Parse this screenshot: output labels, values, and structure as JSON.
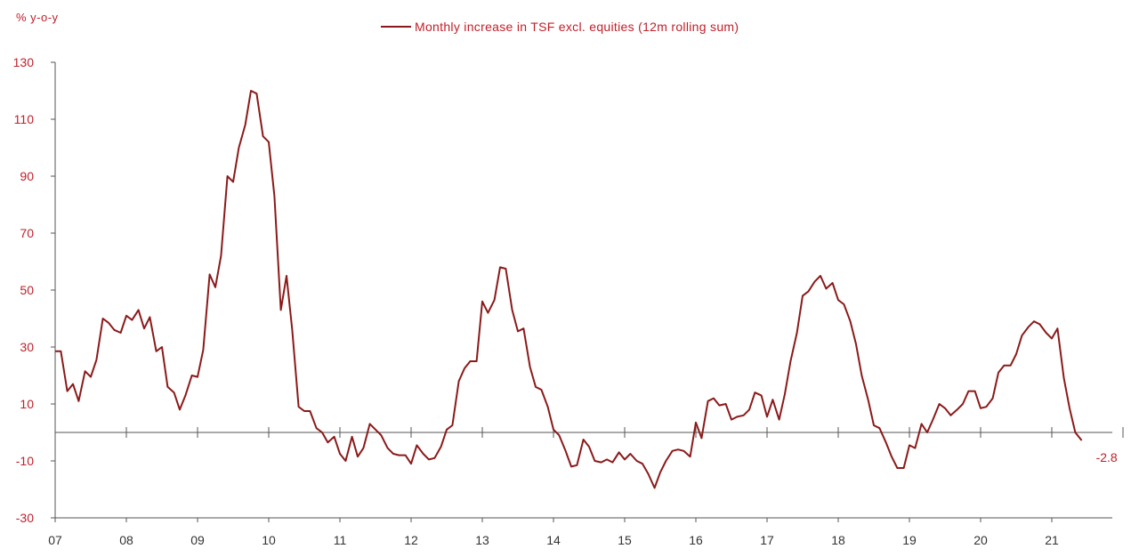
{
  "chart_data": {
    "type": "line",
    "ylabel": "% y-o-y",
    "xlabel": "",
    "ylim": [
      -30,
      130
    ],
    "yticks": [
      -30,
      -10,
      10,
      30,
      50,
      70,
      90,
      110,
      130
    ],
    "xlim": [
      2007,
      2022
    ],
    "xticks": [
      "07",
      "08",
      "09",
      "10",
      "11",
      "12",
      "13",
      "14",
      "15",
      "16",
      "17",
      "18",
      "19",
      "20",
      "21"
    ],
    "legend_position": "top-center",
    "grid": false,
    "end_label": "-2.8",
    "series": [
      {
        "name": "Monthly increase in TSF excl. equities (12m rolling sum)",
        "color": "#8b1a1a",
        "x": [
          2007.0,
          2007.08,
          2007.17,
          2007.25,
          2007.33,
          2007.42,
          2007.5,
          2007.58,
          2007.67,
          2007.75,
          2007.83,
          2007.92,
          2008.0,
          2008.08,
          2008.17,
          2008.25,
          2008.33,
          2008.42,
          2008.5,
          2008.58,
          2008.67,
          2008.75,
          2008.83,
          2008.92,
          2009.0,
          2009.08,
          2009.17,
          2009.25,
          2009.33,
          2009.42,
          2009.5,
          2009.58,
          2009.67,
          2009.75,
          2009.83,
          2009.92,
          2010.0,
          2010.08,
          2010.17,
          2010.25,
          2010.33,
          2010.42,
          2010.5,
          2010.58,
          2010.67,
          2010.75,
          2010.83,
          2010.92,
          2011.0,
          2011.08,
          2011.17,
          2011.25,
          2011.33,
          2011.42,
          2011.5,
          2011.58,
          2011.67,
          2011.75,
          2011.83,
          2011.92,
          2012.0,
          2012.08,
          2012.17,
          2012.25,
          2012.33,
          2012.42,
          2012.5,
          2012.58,
          2012.67,
          2012.75,
          2012.83,
          2012.92,
          2013.0,
          2013.08,
          2013.17,
          2013.25,
          2013.33,
          2013.42,
          2013.5,
          2013.58,
          2013.67,
          2013.75,
          2013.83,
          2013.92,
          2014.0,
          2014.08,
          2014.17,
          2014.25,
          2014.33,
          2014.42,
          2014.5,
          2014.58,
          2014.67,
          2014.75,
          2014.83,
          2014.92,
          2015.0,
          2015.08,
          2015.17,
          2015.25,
          2015.33,
          2015.42,
          2015.5,
          2015.58,
          2015.67,
          2015.75,
          2015.83,
          2015.92,
          2016.0,
          2016.08,
          2016.17,
          2016.25,
          2016.33,
          2016.42,
          2016.5,
          2016.58,
          2016.67,
          2016.75,
          2016.83,
          2016.92,
          2017.0,
          2017.08,
          2017.17,
          2017.25,
          2017.33,
          2017.42,
          2017.5,
          2017.58,
          2017.67,
          2017.75,
          2017.83,
          2017.92,
          2018.0,
          2018.08,
          2018.17,
          2018.25,
          2018.33,
          2018.42,
          2018.5,
          2018.58,
          2018.67,
          2018.75,
          2018.83,
          2018.92,
          2019.0,
          2019.08,
          2019.17,
          2019.25,
          2019.33,
          2019.42,
          2019.5,
          2019.58,
          2019.67,
          2019.75,
          2019.83,
          2019.92,
          2020.0,
          2020.08,
          2020.17,
          2020.25,
          2020.33,
          2020.42,
          2020.5,
          2020.58,
          2020.67,
          2020.75,
          2020.83,
          2020.92,
          2021.0,
          2021.08,
          2021.17,
          2021.25,
          2021.33,
          2021.42
        ],
        "y": [
          28.5,
          28.5,
          14.5,
          17,
          11,
          21.5,
          19.5,
          25.5,
          40,
          38.5,
          36,
          35,
          41,
          39.5,
          43,
          36.5,
          40.5,
          28.5,
          30,
          16,
          14,
          8,
          13,
          20,
          19.5,
          29,
          55.5,
          51,
          62,
          90,
          88,
          100,
          108,
          120,
          119,
          104,
          102,
          83,
          43,
          55,
          36,
          9,
          7.5,
          7.5,
          1.5,
          0,
          -3.5,
          -1.5,
          -7.5,
          -10,
          -1.5,
          -8.5,
          -5.5,
          3,
          1,
          -1,
          -5.5,
          -7.5,
          -8,
          -8,
          -11,
          -4.5,
          -7.5,
          -9.5,
          -9,
          -5,
          1,
          2.5,
          18,
          22.5,
          25,
          25,
          46,
          42,
          46.5,
          58,
          57.5,
          43,
          35.5,
          36.5,
          23,
          16,
          15,
          9,
          1,
          -1,
          -6.5,
          -12,
          -11.5,
          -2.5,
          -5,
          -10,
          -10.5,
          -9.5,
          -10.5,
          -7,
          -9.5,
          -7.5,
          -10,
          -11,
          -14.5,
          -19.5,
          -14,
          -10,
          -6.5,
          -6,
          -6.5,
          -8.5,
          3.5,
          -2,
          11,
          12,
          9.5,
          10,
          4.5,
          5.5,
          6,
          8,
          14,
          13,
          5.5,
          11.5,
          4.5,
          13.5,
          25,
          35,
          48,
          49.5,
          53,
          55,
          50.5,
          52.5,
          46.5,
          45,
          39,
          31,
          20,
          11.5,
          2.5,
          1.5,
          -3.5,
          -8.5,
          -12.5,
          -12.5,
          -4.5,
          -5.5,
          3,
          0,
          4.5,
          10,
          8.5,
          6,
          8,
          10,
          14.5,
          14.5,
          8.5,
          9,
          12,
          21,
          23.5,
          23.5,
          27.5,
          34,
          37,
          39,
          38,
          35,
          33,
          36.5,
          19,
          8.5,
          0,
          -2.8
        ]
      }
    ]
  }
}
